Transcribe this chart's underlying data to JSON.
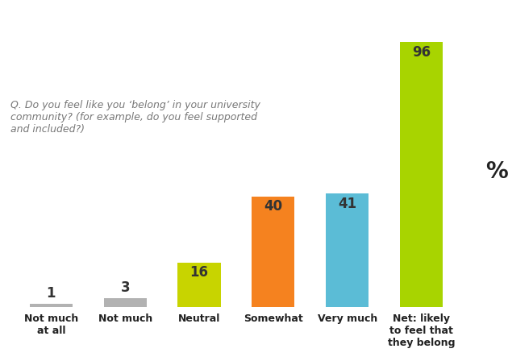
{
  "categories": [
    "Not much\nat all",
    "Not much",
    "Neutral",
    "Somewhat",
    "Very much",
    "Net: likely\nto feel that\nthey belong"
  ],
  "values": [
    1,
    3,
    16,
    40,
    41,
    96
  ],
  "bar_colors": [
    "#b2b2b2",
    "#b2b2b2",
    "#c8d400",
    "#f5821f",
    "#5bbcd6",
    "#a8d400"
  ],
  "question_text": "Q. Do you feel like you ‘belong’ in your university\ncommunity? (for example, do you feel supported\nand included?)",
  "percent_label": "%",
  "ylim": [
    0,
    108
  ],
  "background_color": "#ffffff",
  "bar_width": 0.58,
  "label_fontsize": 12,
  "tick_fontsize": 9,
  "question_fontsize": 9,
  "percent_fontsize": 20
}
